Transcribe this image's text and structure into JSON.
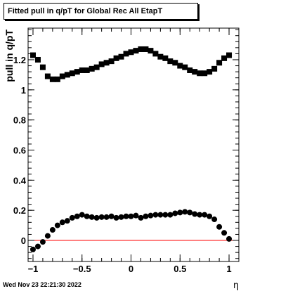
{
  "timestamp": "Wed Nov 23 22:21:30 2022",
  "colors": {
    "frame": "#000000",
    "markers": "#000000",
    "zero_line": "#ff0000",
    "background": "#ffffff"
  },
  "chart_data": {
    "type": "scatter",
    "title": "Fitted pull in q/pT for Global Rec All EtapT",
    "xlabel": "η",
    "ylabel": "pull in q/pT",
    "xlim": [
      -1.05,
      1.1
    ],
    "ylim": [
      -0.14,
      1.41
    ],
    "grid": false,
    "legend": "none",
    "x_ticks": [
      -1,
      -0.5,
      0,
      0.5,
      1
    ],
    "x_tick_labels": [
      "−1",
      "−0.5",
      "0",
      "0.5",
      "1"
    ],
    "y_ticks": [
      0,
      0.2,
      0.4,
      0.6,
      0.8,
      1,
      1.2
    ],
    "y_tick_labels": [
      "0",
      "0.2",
      "0.4",
      "0.6",
      "0.8",
      "1",
      "1.2"
    ],
    "reference_line": {
      "y": 0,
      "x_from": -1.05,
      "x_to": 1.1
    },
    "series": [
      {
        "marker": "square",
        "x": [
          -1.0,
          -0.95,
          -0.9,
          -0.85,
          -0.8,
          -0.75,
          -0.7,
          -0.65,
          -0.6,
          -0.55,
          -0.5,
          -0.45,
          -0.4,
          -0.35,
          -0.3,
          -0.25,
          -0.2,
          -0.15,
          -0.1,
          -0.05,
          0.0,
          0.05,
          0.1,
          0.15,
          0.2,
          0.25,
          0.3,
          0.35,
          0.4,
          0.45,
          0.5,
          0.55,
          0.6,
          0.65,
          0.7,
          0.75,
          0.8,
          0.85,
          0.9,
          0.95,
          1.0
        ],
        "values": [
          1.23,
          1.2,
          1.15,
          1.09,
          1.07,
          1.07,
          1.09,
          1.1,
          1.11,
          1.12,
          1.13,
          1.13,
          1.14,
          1.15,
          1.17,
          1.18,
          1.19,
          1.21,
          1.22,
          1.24,
          1.25,
          1.26,
          1.27,
          1.27,
          1.26,
          1.24,
          1.22,
          1.21,
          1.19,
          1.18,
          1.16,
          1.15,
          1.13,
          1.12,
          1.11,
          1.11,
          1.12,
          1.14,
          1.18,
          1.21,
          1.23
        ]
      },
      {
        "marker": "circle",
        "x": [
          -1.0,
          -0.95,
          -0.9,
          -0.85,
          -0.8,
          -0.75,
          -0.7,
          -0.65,
          -0.6,
          -0.55,
          -0.5,
          -0.45,
          -0.4,
          -0.35,
          -0.3,
          -0.25,
          -0.2,
          -0.15,
          -0.1,
          -0.05,
          0.0,
          0.05,
          0.1,
          0.15,
          0.2,
          0.25,
          0.3,
          0.35,
          0.4,
          0.45,
          0.5,
          0.55,
          0.6,
          0.65,
          0.7,
          0.75,
          0.8,
          0.85,
          0.9,
          0.95,
          1.0
        ],
        "values": [
          -0.06,
          -0.04,
          -0.01,
          0.03,
          0.07,
          0.1,
          0.12,
          0.13,
          0.15,
          0.16,
          0.17,
          0.16,
          0.155,
          0.15,
          0.155,
          0.155,
          0.16,
          0.15,
          0.155,
          0.16,
          0.16,
          0.165,
          0.15,
          0.16,
          0.165,
          0.17,
          0.17,
          0.17,
          0.17,
          0.18,
          0.185,
          0.19,
          0.185,
          0.175,
          0.17,
          0.17,
          0.16,
          0.14,
          0.09,
          0.05,
          0.01
        ]
      }
    ]
  }
}
